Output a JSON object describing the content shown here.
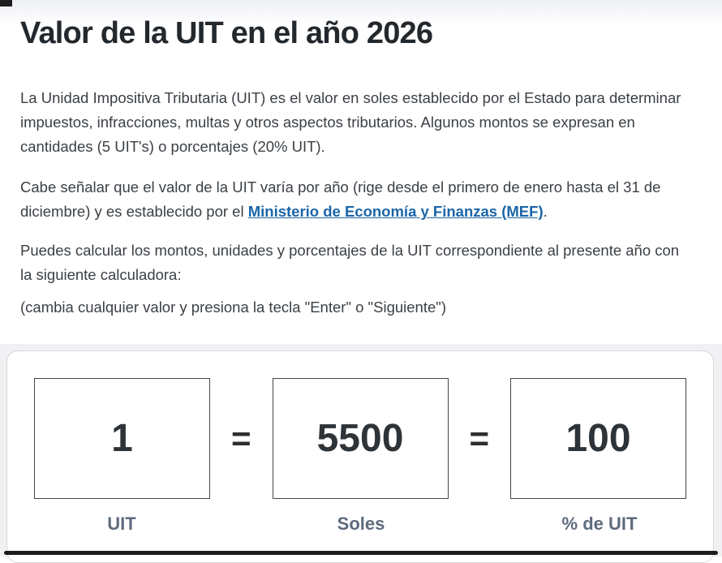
{
  "page": {
    "title": "Valor de la UIT en el año 2026",
    "intro": "La Unidad Impositiva Tributaria (UIT) es el valor en soles establecido por el Estado para determinar impuestos, infracciones, multas y otros aspectos tributarios. Algunos montos se expresan en cantidades (5 UIT's) o porcentajes (20% UIT).",
    "validity_before_link": "Cabe señalar que el valor de la UIT varía por año (rige desde el primero de enero hasta el 31 de diciembre) y es establecido por el ",
    "validity_link_text": "Ministerio de Economía y Finanzas (MEF)",
    "validity_after_link": ".",
    "calc_intro": "Puedes calcular los montos, unidades y porcentajes de la UIT correspondiente al presente año con la siguiente calculadora:",
    "hint": "(cambia cualquier valor y presiona la tecla \"Enter\" o \"Siguiente\")"
  },
  "calculator": {
    "equals": "=",
    "fields": [
      {
        "value": "1",
        "label": "UIT"
      },
      {
        "value": "5500",
        "label": "Soles"
      },
      {
        "value": "100",
        "label": "% de UIT"
      }
    ]
  },
  "colors": {
    "link_blue": "#1a65a8",
    "label_slate": "#5e6b7c",
    "section_gray": "#f1f1f4"
  }
}
